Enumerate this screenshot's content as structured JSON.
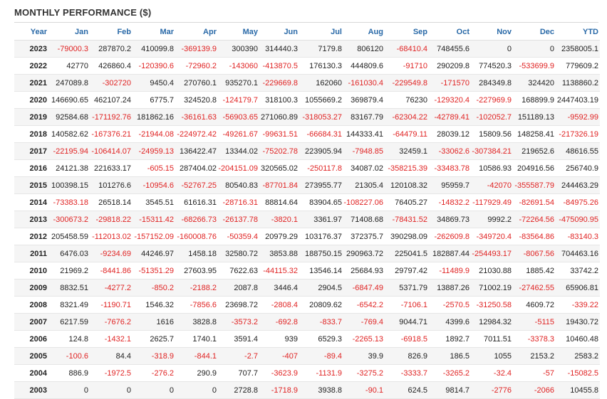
{
  "title": "MONTHLY PERFORMANCE ($)",
  "colors": {
    "header_text": "#2a6aa8",
    "negative": "#e02424",
    "positive": "#222222",
    "stripe": "#f5f5f5"
  },
  "columns": [
    "Year",
    "Jan",
    "Feb",
    "Mar",
    "Apr",
    "May",
    "Jun",
    "Jul",
    "Aug",
    "Sep",
    "Oct",
    "Nov",
    "Dec",
    "YTD"
  ],
  "rows": [
    [
      "2023",
      "-79000.3",
      "287870.2",
      "410099.8",
      "-369139.9",
      "300390",
      "314440.3",
      "7179.8",
      "806120",
      "-68410.4",
      "748455.6",
      "0",
      "0",
      "2358005.1"
    ],
    [
      "2022",
      "42770",
      "426860.4",
      "-120390.6",
      "-72960.2",
      "-143060",
      "-413870.5",
      "176130.3",
      "444809.6",
      "-91710",
      "290209.8",
      "774520.3",
      "-533699.9",
      "779609.2"
    ],
    [
      "2021",
      "247089.8",
      "-302720",
      "9450.4",
      "270760.1",
      "935270.1",
      "-229669.8",
      "162060",
      "-161030.4",
      "-229549.8",
      "-171570",
      "284349.8",
      "324420",
      "1138860.2"
    ],
    [
      "2020",
      "146690.65",
      "462107.24",
      "6775.7",
      "324520.8",
      "-124179.7",
      "318100.3",
      "1055669.2",
      "369879.4",
      "76230",
      "-129320.4",
      "-227969.9",
      "168899.9",
      "2447403.19"
    ],
    [
      "2019",
      "92584.68",
      "-171192.76",
      "181862.16",
      "-36161.63",
      "-56903.65",
      "271060.89",
      "-318053.27",
      "83167.79",
      "-62304.22",
      "-42789.41",
      "-102052.7",
      "151189.13",
      "-9592.99"
    ],
    [
      "2018",
      "140582.62",
      "-167376.21",
      "-21944.08",
      "-224972.42",
      "-49261.67",
      "-99631.51",
      "-66684.31",
      "144333.41",
      "-64479.11",
      "28039.12",
      "15809.56",
      "148258.41",
      "-217326.19"
    ],
    [
      "2017",
      "-22195.94",
      "-106414.07",
      "-24959.13",
      "136422.47",
      "13344.02",
      "-75202.78",
      "223905.94",
      "-7948.85",
      "32459.1",
      "-33062.6",
      "-307384.21",
      "219652.6",
      "48616.55"
    ],
    [
      "2016",
      "24121.38",
      "221633.17",
      "-605.15",
      "287404.02",
      "-204151.09",
      "320565.02",
      "-250117.8",
      "34087.02",
      "-358215.39",
      "-33483.78",
      "10586.93",
      "204916.56",
      "256740.9"
    ],
    [
      "2015",
      "100398.15",
      "101276.6",
      "-10954.6",
      "-52767.25",
      "80540.83",
      "-87701.84",
      "273955.77",
      "21305.4",
      "120108.32",
      "95959.7",
      "-42070",
      "-355587.79",
      "244463.29"
    ],
    [
      "2014",
      "-73383.18",
      "26518.14",
      "3545.51",
      "61616.31",
      "-28716.31",
      "88814.64",
      "83904.65",
      "-108227.06",
      "76405.27",
      "-14832.2",
      "-117929.49",
      "-82691.54",
      "-84975.26"
    ],
    [
      "2013",
      "-300673.2",
      "-29818.22",
      "-15311.42",
      "-68266.73",
      "-26137.78",
      "-3820.1",
      "3361.97",
      "71408.68",
      "-78431.52",
      "34869.73",
      "9992.2",
      "-72264.56",
      "-475090.95"
    ],
    [
      "2012",
      "205458.59",
      "-112013.02",
      "-157152.09",
      "-160008.76",
      "-50359.4",
      "20979.29",
      "103176.37",
      "372375.7",
      "390298.09",
      "-262609.8",
      "-349720.4",
      "-83564.86",
      "-83140.3"
    ],
    [
      "2011",
      "6476.03",
      "-9234.69",
      "44246.97",
      "1458.18",
      "32580.72",
      "3853.88",
      "188750.15",
      "290963.72",
      "225041.5",
      "182887.44",
      "-254493.17",
      "-8067.56",
      "704463.16"
    ],
    [
      "2010",
      "21969.2",
      "-8441.86",
      "-51351.29",
      "27603.95",
      "7622.63",
      "-44115.32",
      "13546.14",
      "25684.93",
      "29797.42",
      "-11489.9",
      "21030.88",
      "1885.42",
      "33742.2"
    ],
    [
      "2009",
      "8832.51",
      "-4277.2",
      "-850.2",
      "-2188.2",
      "2087.8",
      "3446.4",
      "2904.5",
      "-6847.49",
      "5371.79",
      "13887.26",
      "71002.19",
      "-27462.55",
      "65906.81"
    ],
    [
      "2008",
      "8321.49",
      "-1190.71",
      "1546.32",
      "-7856.6",
      "23698.72",
      "-2808.4",
      "20809.62",
      "-6542.2",
      "-7106.1",
      "-2570.5",
      "-31250.58",
      "4609.72",
      "-339.22"
    ],
    [
      "2007",
      "6217.59",
      "-7676.2",
      "1616",
      "3828.8",
      "-3573.2",
      "-692.8",
      "-833.7",
      "-769.4",
      "9044.71",
      "4399.6",
      "12984.32",
      "-5115",
      "19430.72"
    ],
    [
      "2006",
      "124.8",
      "-1432.1",
      "2625.7",
      "1740.1",
      "3591.4",
      "939",
      "6529.3",
      "-2265.13",
      "-6918.5",
      "1892.7",
      "7011.51",
      "-3378.3",
      "10460.48"
    ],
    [
      "2005",
      "-100.6",
      "84.4",
      "-318.9",
      "-844.1",
      "-2.7",
      "-407",
      "-89.4",
      "39.9",
      "826.9",
      "186.5",
      "1055",
      "2153.2",
      "2583.2"
    ],
    [
      "2004",
      "886.9",
      "-1972.5",
      "-276.2",
      "290.9",
      "707.7",
      "-3623.9",
      "-1131.9",
      "-3275.2",
      "-3333.7",
      "-3265.2",
      "-32.4",
      "-57",
      "-15082.5"
    ],
    [
      "2003",
      "0",
      "0",
      "0",
      "0",
      "2728.8",
      "-1718.9",
      "3938.8",
      "-90.1",
      "624.5",
      "9814.7",
      "-2776",
      "-2066",
      "10455.8"
    ]
  ]
}
